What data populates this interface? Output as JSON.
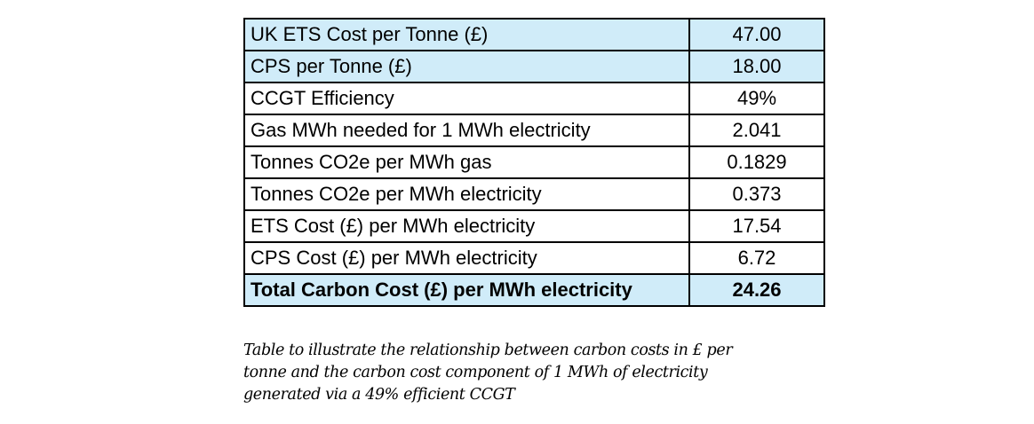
{
  "table": {
    "rows": [
      {
        "label": "UK ETS Cost per Tonne (£)",
        "value": "47.00"
      },
      {
        "label": "CPS per Tonne (£)",
        "value": "18.00"
      },
      {
        "label": "CCGT Efficiency",
        "value": "49%"
      },
      {
        "label": "Gas MWh needed for 1 MWh electricity",
        "value": "2.041"
      },
      {
        "label": "Tonnes CO2e per MWh gas",
        "value": "0.1829"
      },
      {
        "label": "Tonnes CO2e per MWh electricity",
        "value": "0.373"
      },
      {
        "label": "ETS Cost (£) per MWh electricity",
        "value": "17.54"
      },
      {
        "label": "CPS Cost (£) per MWh electricity",
        "value": "6.72"
      },
      {
        "label": "Total Carbon Cost (£) per MWh electricity",
        "value": "24.26"
      }
    ],
    "highlight_color": "#d0ecf9"
  },
  "caption": {
    "lines": [
      "Table to illustrate the relationship between carbon costs in £ per",
      "tonne and the carbon cost component of 1 MWh of electricity",
      "generated via a 49% efficient CCGT"
    ]
  }
}
